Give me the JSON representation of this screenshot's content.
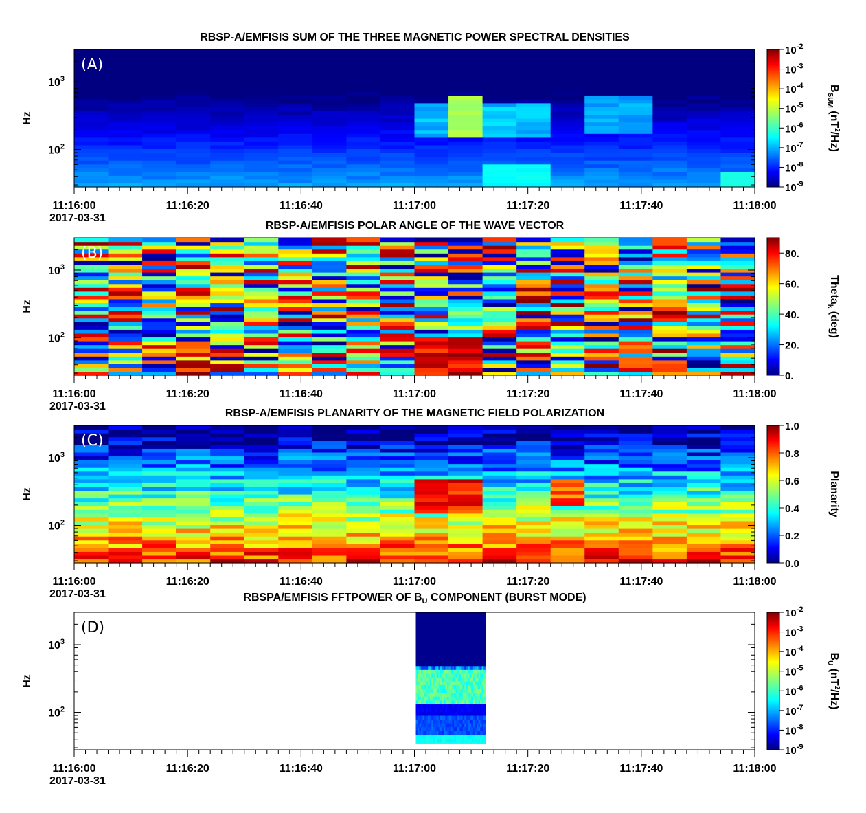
{
  "figure": {
    "x_ticks": [
      "11:16:00",
      "11:16:20",
      "11:16:40",
      "11:17:00",
      "11:17:20",
      "11:17:40",
      "11:18:00"
    ],
    "date_label": "2017-03-31",
    "y_axis_label": "Hz"
  },
  "chart_data": [
    {
      "type": "heatmap",
      "panel_label": "(A)",
      "title": "RBSP-A/EMFISIS  SUM OF THE THREE MAGNETIC POWER SPECTRAL DENSITIES",
      "ylabel": "Hz",
      "yscale": "log",
      "ylim": [
        28,
        3000
      ],
      "y_ticks": [
        {
          "base": "10",
          "exp": "2"
        },
        {
          "base": "10",
          "exp": "3"
        }
      ],
      "xlim": [
        "11:16:00",
        "11:18:00"
      ],
      "colorbar": {
        "label_main": "B",
        "label_sub": "SUM",
        "label_unit_a": " (nT",
        "label_unit_sup": "2",
        "label_unit_b": "/Hz)",
        "scale": "log",
        "range": [
          1e-09,
          0.01
        ],
        "ticks": [
          {
            "base": "10",
            "exp": "-2"
          },
          {
            "base": "10",
            "exp": "-3"
          },
          {
            "base": "10",
            "exp": "-4"
          },
          {
            "base": "10",
            "exp": "-5"
          },
          {
            "base": "10",
            "exp": "-6"
          },
          {
            "base": "10",
            "exp": "-7"
          },
          {
            "base": "10",
            "exp": "-8"
          },
          {
            "base": "10",
            "exp": "-9"
          }
        ]
      },
      "time_bins_s": 6,
      "bright_interval": [
        "11:17:06",
        "11:17:12"
      ],
      "description_values": "log10 power approx -9 at high freq, -7 at low freq; peak ~ -5 near 200-400 Hz at 11:17:06"
    },
    {
      "type": "heatmap",
      "panel_label": "(B)",
      "title": "RBSP-A/EMFISIS  POLAR ANGLE OF THE WAVE VECTOR",
      "ylabel": "Hz",
      "yscale": "log",
      "ylim": [
        28,
        3000
      ],
      "y_ticks": [
        {
          "base": "10",
          "exp": "2"
        },
        {
          "base": "10",
          "exp": "3"
        }
      ],
      "xlim": [
        "11:16:00",
        "11:18:00"
      ],
      "colorbar": {
        "label_main": "Theta",
        "label_sub": "k",
        "label_unit_a": " (deg)",
        "label_unit_sup": "",
        "label_unit_b": "",
        "scale": "linear",
        "range": [
          0,
          90
        ],
        "ticks": [
          "80.",
          "60.",
          "40.",
          "20.",
          "0."
        ]
      },
      "time_bins_s": 6
    },
    {
      "type": "heatmap",
      "panel_label": "(C)",
      "title": "RBSP-A/EMFISIS  PLANARITY OF THE MAGNETIC FIELD POLARIZATION",
      "ylabel": "Hz",
      "yscale": "log",
      "ylim": [
        28,
        3000
      ],
      "y_ticks": [
        {
          "base": "10",
          "exp": "2"
        },
        {
          "base": "10",
          "exp": "3"
        }
      ],
      "xlim": [
        "11:16:00",
        "11:18:00"
      ],
      "colorbar": {
        "label_main": "Planarity",
        "label_sub": "",
        "label_unit_a": "",
        "label_unit_sup": "",
        "label_unit_b": "",
        "scale": "linear",
        "range": [
          0,
          1
        ],
        "ticks": [
          "1.0",
          "0.8",
          "0.6",
          "0.4",
          "0.2",
          "0.0"
        ]
      },
      "time_bins_s": 6
    },
    {
      "type": "heatmap",
      "panel_label": "(D)",
      "title_a": "RBSPA/EMFISIS  FFTPOWER OF B",
      "title_sub": "U",
      "title_b": " COMPONENT (BURST MODE)",
      "ylabel": "Hz",
      "yscale": "log",
      "ylim": [
        28,
        3000
      ],
      "y_ticks": [
        {
          "base": "10",
          "exp": "2"
        },
        {
          "base": "10",
          "exp": "3"
        }
      ],
      "xlim": [
        "11:16:00",
        "11:18:00"
      ],
      "data_interval": [
        "11:17:00",
        "11:17:12"
      ],
      "colorbar": {
        "label_main": "B",
        "label_sub": "U",
        "label_unit_a": " (nT",
        "label_unit_sup": "2",
        "label_unit_b": "/Hz)",
        "scale": "log",
        "range": [
          1e-09,
          0.01
        ],
        "ticks": [
          {
            "base": "10",
            "exp": "-2"
          },
          {
            "base": "10",
            "exp": "-3"
          },
          {
            "base": "10",
            "exp": "-4"
          },
          {
            "base": "10",
            "exp": "-5"
          },
          {
            "base": "10",
            "exp": "-6"
          },
          {
            "base": "10",
            "exp": "-7"
          },
          {
            "base": "10",
            "exp": "-8"
          },
          {
            "base": "10",
            "exp": "-9"
          }
        ]
      }
    }
  ]
}
